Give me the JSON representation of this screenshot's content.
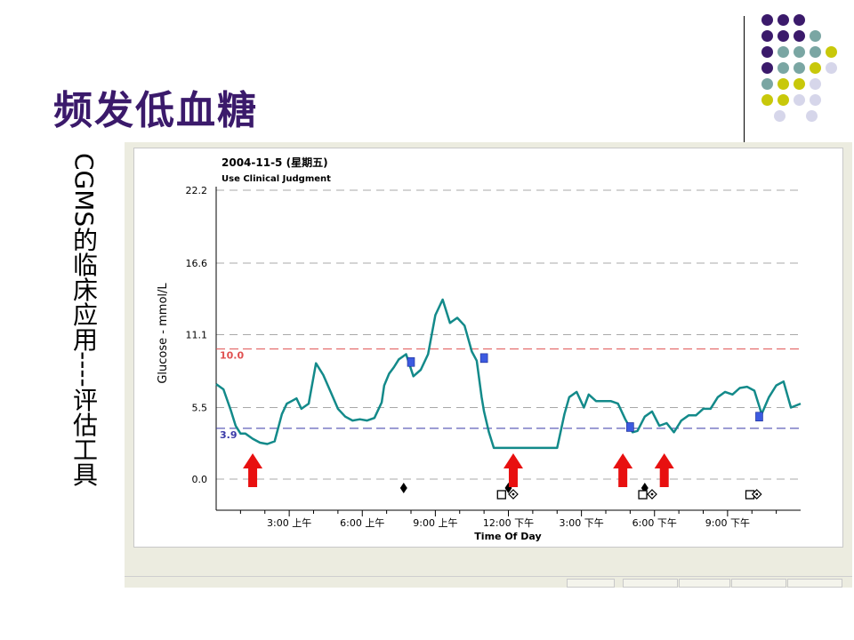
{
  "slide": {
    "title": "频发低血糖",
    "side_caption": "CGMS的临床应用----评估工具",
    "accent_colors": [
      "#3b1a6b",
      "#7aa6a3",
      "#c8c80a",
      "#d6d6ea"
    ]
  },
  "chart_data": {
    "type": "line",
    "title": "2004-11-5 (星期五)",
    "subtitle": "Use Clinical Judgment",
    "xlabel": "Time Of Day",
    "ylabel": "Glucose - mmol/L",
    "ylim": [
      0,
      22.2
    ],
    "xlim": [
      0,
      24
    ],
    "grid": true,
    "yticks": [
      {
        "value": 0.0,
        "label": "0.0"
      },
      {
        "value": 5.5,
        "label": "5.5"
      },
      {
        "value": 11.1,
        "label": "11.1"
      },
      {
        "value": 16.6,
        "label": "16.6"
      },
      {
        "value": 22.2,
        "label": "22.2"
      }
    ],
    "xticks": [
      {
        "value": 3,
        "label": "3:00 上午"
      },
      {
        "value": 6,
        "label": "6:00 上午"
      },
      {
        "value": 9,
        "label": "9:00 上午"
      },
      {
        "value": 12,
        "label": "12:00 下午"
      },
      {
        "value": 15,
        "label": "3:00 下午"
      },
      {
        "value": 18,
        "label": "6:00 下午"
      },
      {
        "value": 21,
        "label": "9:00 下午"
      }
    ],
    "high_limit": {
      "value": 10.0,
      "label": "10.0",
      "color": "#e05050"
    },
    "low_limit": {
      "value": 3.9,
      "label": "3.9",
      "color": "#3a3aa8"
    },
    "line_color": "#138a8a",
    "series": [
      {
        "x": [
          0.0,
          0.3,
          0.6,
          0.8,
          1.0,
          1.2,
          1.5,
          1.8,
          2.1,
          2.4,
          2.7,
          2.9,
          3.1,
          3.3,
          3.5,
          3.8,
          4.1,
          4.4,
          4.7,
          5.0,
          5.3,
          5.6,
          5.9,
          6.2,
          6.5,
          6.8,
          6.9,
          7.1,
          7.3,
          7.5,
          7.8,
          8.1,
          8.4,
          8.7,
          9.0,
          9.3,
          9.6,
          9.9,
          10.2,
          10.5,
          10.7,
          10.9,
          11.0,
          11.2,
          11.4,
          11.6,
          11.8,
          12.0,
          12.5,
          13.0,
          13.5,
          14.0,
          14.3,
          14.5,
          14.8,
          15.1,
          15.3,
          15.6,
          15.9,
          16.2,
          16.5,
          16.8,
          17.1,
          17.3,
          17.6,
          17.9,
          18.2,
          18.5,
          18.8,
          19.1,
          19.4,
          19.7,
          20.0,
          20.3,
          20.6,
          20.9,
          21.2,
          21.5,
          21.8,
          22.1,
          22.4,
          22.7,
          23.0,
          23.3,
          23.6,
          24.0
        ],
        "y": [
          7.3,
          6.9,
          5.3,
          4.1,
          3.5,
          3.5,
          3.1,
          2.8,
          2.7,
          2.9,
          5.0,
          5.8,
          6.0,
          6.2,
          5.4,
          5.8,
          8.9,
          8.0,
          6.7,
          5.4,
          4.8,
          4.5,
          4.6,
          4.5,
          4.7,
          5.9,
          7.2,
          8.1,
          8.6,
          9.2,
          9.6,
          7.9,
          8.4,
          9.6,
          12.6,
          13.8,
          12.0,
          12.4,
          11.8,
          9.8,
          9.1,
          6.3,
          5.2,
          3.6,
          2.4,
          2.4,
          2.4,
          2.4,
          2.4,
          2.4,
          2.4,
          2.4,
          5.0,
          6.3,
          6.7,
          5.5,
          6.5,
          6.0,
          6.0,
          6.0,
          5.8,
          4.6,
          3.6,
          3.7,
          4.8,
          5.2,
          4.1,
          4.3,
          3.6,
          4.5,
          4.9,
          4.9,
          5.4,
          5.4,
          6.3,
          6.7,
          6.5,
          7.0,
          7.1,
          6.8,
          5.0,
          6.3,
          7.2,
          7.5,
          5.5,
          5.8
        ]
      }
    ],
    "meal_markers": [
      {
        "x": 8.0,
        "y": 9.0
      },
      {
        "x": 11.0,
        "y": 9.3
      },
      {
        "x": 17.0,
        "y": 4.0
      },
      {
        "x": 22.3,
        "y": 4.8
      }
    ],
    "event_marker_times": [
      7.7,
      12.0,
      17.6
    ],
    "square_marker_times": [
      11.7,
      17.5,
      21.9
    ],
    "diamond_marker_times": [
      12.2,
      17.9,
      22.2
    ],
    "hypoglycemia_arrow_times": [
      1.5,
      12.2,
      16.7,
      18.4
    ]
  }
}
